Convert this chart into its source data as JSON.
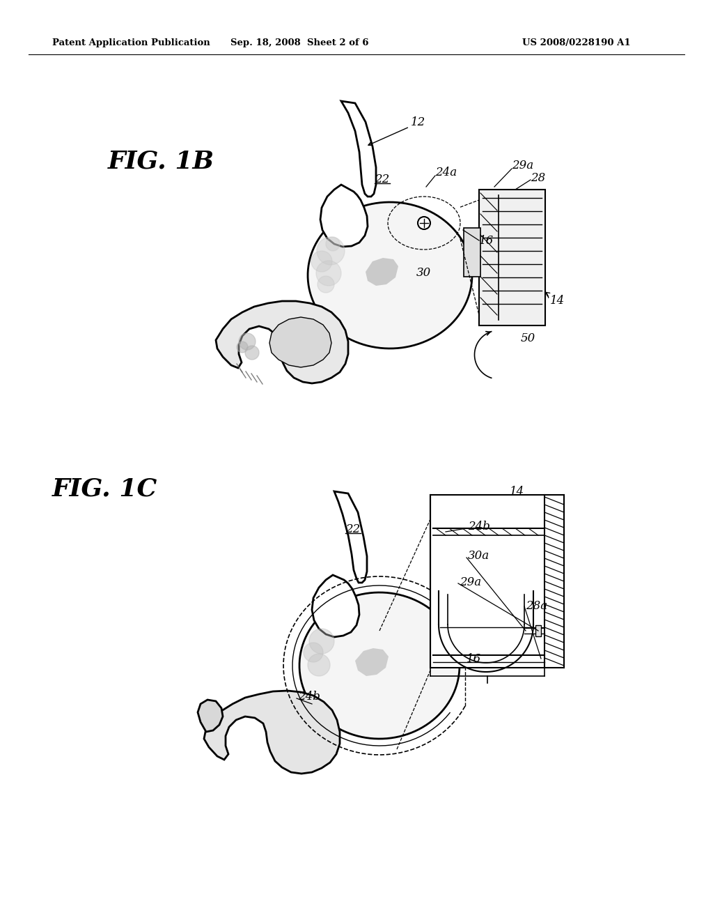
{
  "bg_color": "#ffffff",
  "header_text": "Patent Application Publication",
  "header_date": "Sep. 18, 2008  Sheet 2 of 6",
  "header_patent": "US 2008/0228190 A1",
  "fig1b_label": "FIG. 1B",
  "fig1c_label": "FIG. 1C"
}
